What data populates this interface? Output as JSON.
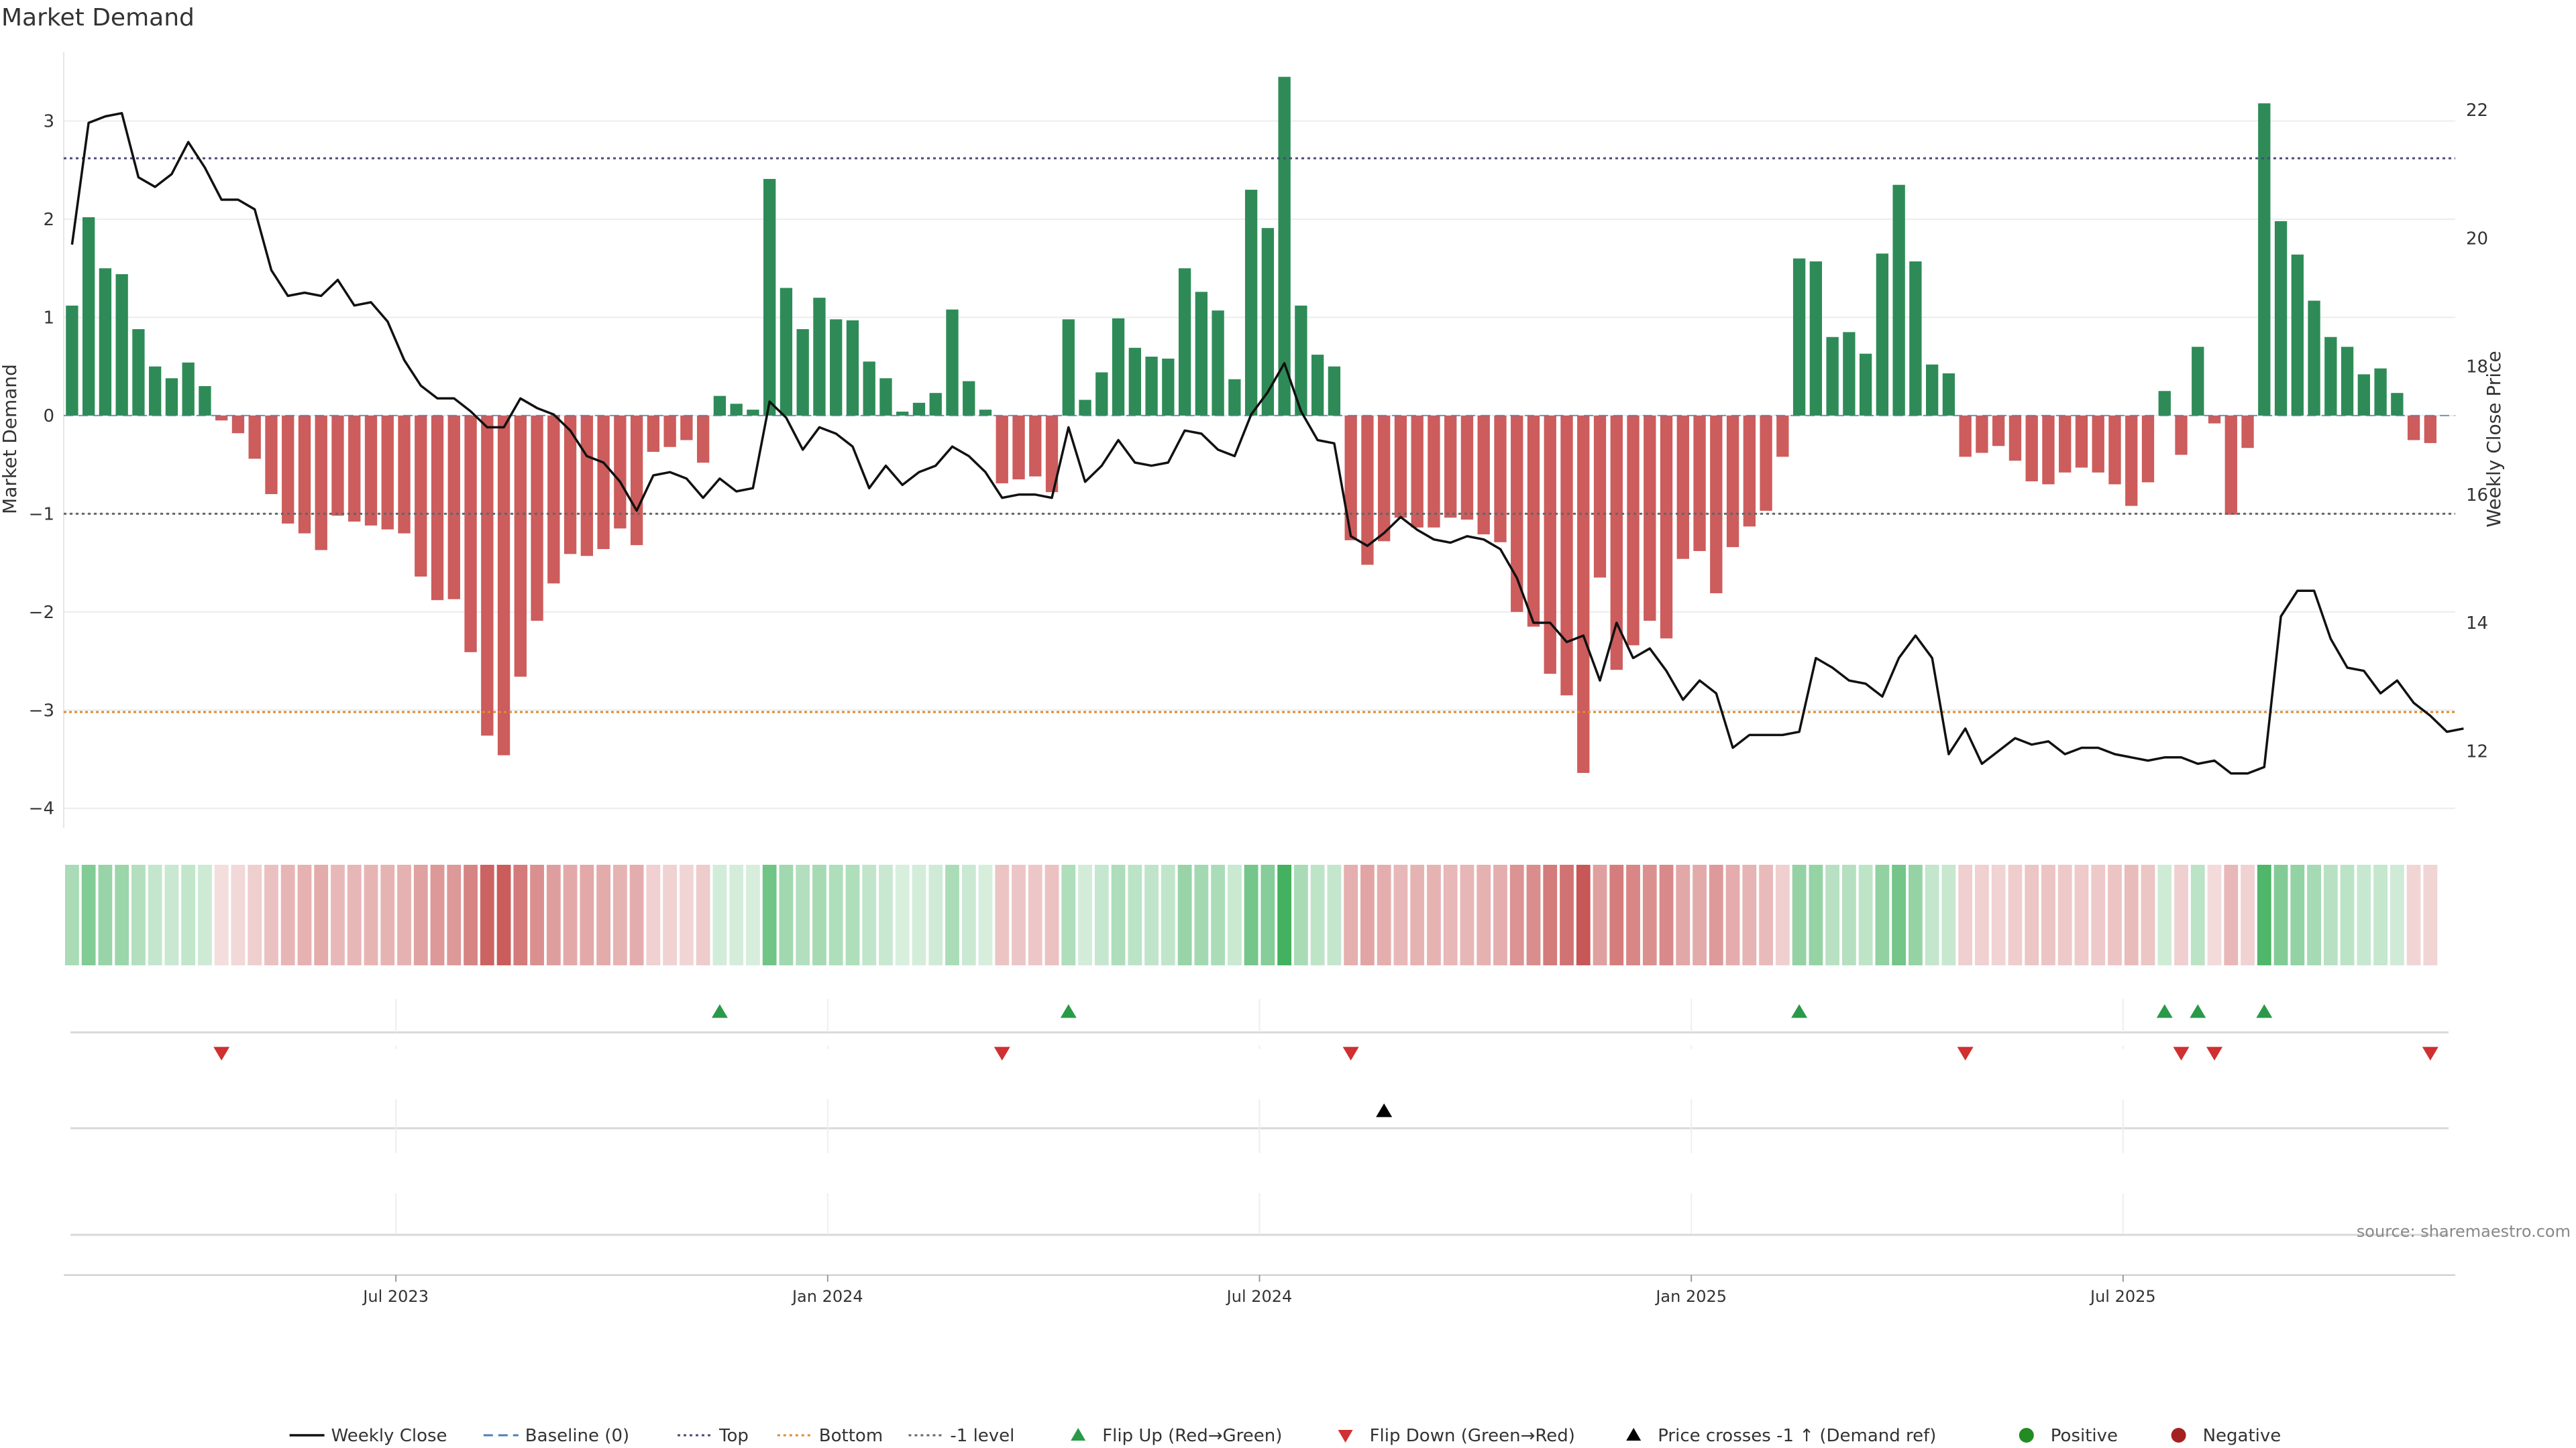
{
  "chart_data": {
    "type": "bar",
    "title": "Market Demand",
    "ylabel": "Market Demand",
    "y2label": "Weekly Close Price",
    "ylim": [
      -4.2,
      3.7
    ],
    "y2lim": [
      10.8,
      22.9
    ],
    "yticks": [
      "3",
      "2",
      "1",
      "0",
      "−1",
      "−2",
      "−3",
      "−4"
    ],
    "ytick_values": [
      3,
      2,
      1,
      0,
      -1,
      -2,
      -3,
      -4
    ],
    "y2ticks": [
      "22",
      "20",
      "18",
      "16",
      "14",
      "12"
    ],
    "y2tick_values": [
      22,
      20,
      18,
      16,
      14,
      12
    ],
    "xticks": [
      "Jul 2023",
      "Jan 2024",
      "Jul 2024",
      "Jan 2025",
      "Jul 2025"
    ],
    "xtick_week_index": [
      20,
      46,
      72,
      98,
      124
    ],
    "weeks": 144,
    "reference_lines": {
      "top": 2.62,
      "minus_one": -1.0,
      "bottom": -3.02,
      "baseline": 0
    },
    "series": [
      {
        "name": "Market Demand",
        "values": [
          1.12,
          2.02,
          1.5,
          1.44,
          0.88,
          0.5,
          0.38,
          0.54,
          0.3,
          -0.05,
          -0.18,
          -0.44,
          -0.8,
          -1.1,
          -1.2,
          -1.37,
          -1.02,
          -1.08,
          -1.12,
          -1.16,
          -1.2,
          -1.64,
          -1.88,
          -1.87,
          -2.41,
          -3.26,
          -3.46,
          -2.66,
          -2.09,
          -1.71,
          -1.41,
          -1.43,
          -1.36,
          -1.15,
          -1.32,
          -0.37,
          -0.32,
          -0.25,
          -0.48,
          0.2,
          0.12,
          0.06,
          2.41,
          1.3,
          0.88,
          1.2,
          0.98,
          0.97,
          0.55,
          0.38,
          0.04,
          0.13,
          0.23,
          1.08,
          0.35,
          0.06,
          -0.69,
          -0.65,
          -0.62,
          -0.78,
          0.98,
          0.16,
          0.44,
          0.99,
          0.69,
          0.6,
          0.58,
          1.5,
          1.26,
          1.07,
          0.37,
          2.3,
          1.91,
          3.45,
          1.12,
          0.62,
          0.5,
          -1.27,
          -1.52,
          -1.28,
          -1.04,
          -1.14,
          -1.14,
          -1.04,
          -1.06,
          -1.21,
          -1.29,
          -2.0,
          -2.15,
          -2.63,
          -2.85,
          -3.64,
          -1.65,
          -2.59,
          -2.34,
          -2.09,
          -2.27,
          -1.46,
          -1.38,
          -1.81,
          -1.34,
          -1.13,
          -0.97,
          -0.42,
          1.6,
          1.57,
          0.8,
          0.85,
          0.63,
          1.65,
          2.35,
          1.57,
          0.52,
          0.43,
          -0.42,
          -0.38,
          -0.31,
          -0.46,
          -0.67,
          -0.7,
          -0.58,
          -0.53,
          -0.58,
          -0.7,
          -0.92,
          -0.68,
          0.25,
          -0.4,
          0.7,
          -0.08,
          -1.01,
          -0.33,
          3.18,
          1.98,
          1.64,
          1.17,
          0.8,
          0.7,
          0.42,
          0.48,
          0.23,
          -0.25,
          -0.28
        ]
      },
      {
        "name": "Weekly Close",
        "values": [
          19.9,
          21.8,
          21.9,
          21.95,
          20.95,
          20.8,
          21.0,
          21.5,
          21.1,
          20.6,
          20.6,
          20.45,
          19.5,
          19.1,
          19.15,
          19.1,
          19.35,
          18.95,
          19.0,
          18.7,
          18.1,
          17.7,
          17.5,
          17.5,
          17.3,
          17.05,
          17.05,
          17.5,
          17.35,
          17.25,
          17.0,
          16.6,
          16.5,
          16.2,
          15.75,
          16.3,
          16.35,
          16.25,
          15.95,
          16.25,
          16.05,
          16.1,
          17.45,
          17.2,
          16.7,
          17.05,
          16.95,
          16.75,
          16.1,
          16.45,
          16.15,
          16.35,
          16.45,
          16.75,
          16.6,
          16.35,
          15.95,
          16.0,
          16.0,
          15.95,
          17.05,
          16.2,
          16.45,
          16.85,
          16.5,
          16.45,
          16.5,
          17.0,
          16.95,
          16.7,
          16.6,
          17.25,
          17.6,
          18.05,
          17.3,
          16.85,
          16.8,
          15.35,
          15.2,
          15.4,
          15.65,
          15.45,
          15.3,
          15.25,
          15.35,
          15.3,
          15.15,
          14.7,
          14.0,
          14.0,
          13.7,
          13.8,
          13.1,
          14.0,
          13.45,
          13.6,
          13.25,
          12.8,
          13.1,
          12.9,
          12.05,
          12.25,
          12.25,
          12.25,
          12.3,
          13.45,
          13.3,
          13.1,
          13.05,
          12.85,
          13.45,
          13.8,
          13.45,
          11.95,
          12.35,
          11.8,
          12.0,
          12.2,
          12.1,
          12.15,
          11.95,
          12.05,
          12.05,
          11.95,
          11.9,
          11.85,
          11.9,
          11.9,
          11.8,
          11.85,
          11.65,
          11.65,
          11.75,
          14.1,
          14.5,
          14.5,
          13.75,
          13.3,
          13.25,
          12.9,
          13.1,
          12.75,
          12.55,
          12.3,
          12.35
        ]
      }
    ],
    "flip_up_week_index": [
      39,
      60,
      104,
      126,
      128,
      132
    ],
    "flip_down_week_index": [
      9,
      56,
      77,
      114,
      127,
      129,
      142
    ],
    "price_cross_week_index": [
      79
    ],
    "legend": {
      "position": "bottom",
      "entries": [
        {
          "label": "Weekly Close",
          "marker": "line-solid",
          "color": "#111111"
        },
        {
          "label": "Baseline (0)",
          "marker": "line-dashed",
          "color": "#4a7fb8"
        },
        {
          "label": "Top",
          "marker": "line-dotted",
          "color": "#4a4a7a"
        },
        {
          "label": "Bottom",
          "marker": "line-dotted",
          "color": "#e08a2c"
        },
        {
          "label": "-1 level",
          "marker": "line-dotted",
          "color": "#666666"
        },
        {
          "label": "Flip Up (Red→Green)",
          "marker": "triangle-up",
          "color": "#2a9a4a"
        },
        {
          "label": "Flip Down (Green→Red)",
          "marker": "triangle-down",
          "color": "#d03030"
        },
        {
          "label": "Price crosses -1 ↑ (Demand ref)",
          "marker": "triangle-up",
          "color": "#000000"
        },
        {
          "label": "Positive",
          "marker": "circle",
          "color": "#228b22"
        },
        {
          "label": "Negative",
          "marker": "circle",
          "color": "#a52020"
        }
      ]
    },
    "colors": {
      "positive_bar": "#2e8b57",
      "negative_bar": "#cd5c5c",
      "price_line": "#111111",
      "top_line": "#4a4a7a",
      "bottom_line": "#e08a2c",
      "minus_one_line": "#666666"
    },
    "source": "source: sharemaestro.com"
  }
}
